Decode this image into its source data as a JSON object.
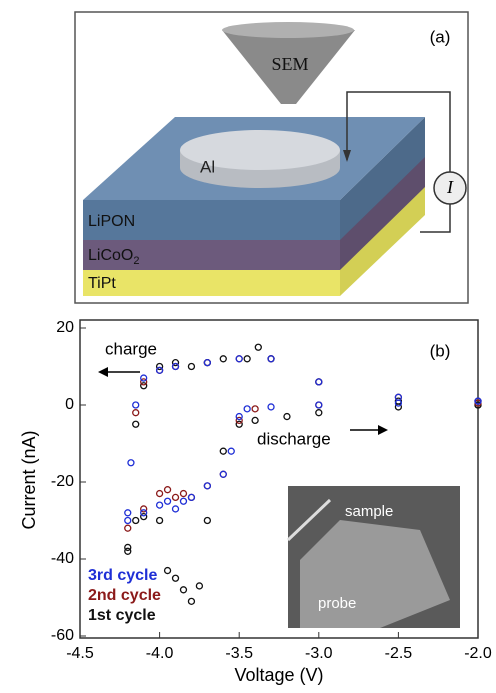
{
  "panel_a": {
    "label": "(a)",
    "sem": "SEM",
    "electrode": "Al",
    "meter": "I",
    "layers": [
      {
        "label": "LiPON",
        "color": "#56779b"
      },
      {
        "label": "LiCoO",
        "subscript": "2",
        "color": "#6c5a7c"
      },
      {
        "label": "TiPt",
        "color": "#e9e467"
      }
    ]
  },
  "chart_data": {
    "type": "scatter",
    "panel_label": "(b)",
    "x_label": "Voltage (V)",
    "y_label": "Current (nA)",
    "annotations": {
      "charge": "charge",
      "discharge": "discharge",
      "sample": "sample",
      "probe": "probe"
    },
    "xlim": [
      -4.5,
      -2.0
    ],
    "ylim": [
      -60,
      20
    ],
    "xticks": [
      {
        "value": -4.5,
        "label": "-4.5"
      },
      {
        "value": -4,
        "label": "-4.0"
      },
      {
        "value": -3.5,
        "label": "-3.5"
      },
      {
        "value": -3,
        "label": "-3.0"
      },
      {
        "value": -2.5,
        "label": "-2.5"
      },
      {
        "value": -2,
        "label": "-2.0"
      }
    ],
    "yticks": [
      -60,
      -40,
      -20,
      0,
      20
    ],
    "series": [
      {
        "name": "3rd cycle",
        "color": "#1f2fd6",
        "x": [
          -2.0,
          -2.5,
          -3.0,
          -3.3,
          -3.5,
          -3.7,
          -3.9,
          -4.0,
          -4.1,
          -4.15,
          -4.18,
          -4.2,
          -4.2,
          -4.1,
          -4.0,
          -3.95,
          -3.9,
          -3.85,
          -3.8,
          -3.7,
          -3.6,
          -3.55,
          -3.5,
          -3.45,
          -3.3,
          -3.0,
          -2.5,
          -2.0
        ],
        "values": [
          1,
          2,
          6,
          12,
          12,
          11,
          10,
          9,
          7,
          0,
          -15,
          -28,
          -30,
          -28,
          -26,
          -25,
          -27,
          -25,
          -24,
          -21,
          -18,
          -12,
          -3,
          -1,
          -0.5,
          0,
          0.5,
          1
        ]
      },
      {
        "name": "2nd cycle",
        "color": "#8b1a1a",
        "x": [
          -2.0,
          -2.5,
          -3.0,
          -3.3,
          -3.5,
          -3.7,
          -3.9,
          -4.0,
          -4.1,
          -4.15,
          -4.2,
          -4.1,
          -4.0,
          -3.95,
          -3.9,
          -3.85,
          -3.8,
          -3.7,
          -3.6,
          -3.5,
          -3.4,
          -3.0,
          -2.0
        ],
        "values": [
          1,
          2,
          6,
          12,
          12,
          11,
          10,
          9,
          6,
          -2,
          -32,
          -27,
          -23,
          -22,
          -24,
          -23,
          -24,
          -21,
          -18,
          -4,
          -1,
          0,
          0.5
        ]
      },
      {
        "name": "1st cycle",
        "color": "#111111",
        "x": [
          -2.0,
          -2.5,
          -3.0,
          -3.3,
          -3.38,
          -3.45,
          -3.6,
          -3.7,
          -3.8,
          -3.9,
          -4.0,
          -4.1,
          -4.15,
          -4.2,
          -4.2,
          -4.15,
          -4.1,
          -4.0,
          -3.95,
          -3.9,
          -3.85,
          -3.8,
          -3.75,
          -3.7,
          -3.6,
          -3.5,
          -3.4,
          -3.2,
          -3.0,
          -2.5,
          -2.0
        ],
        "values": [
          0,
          1,
          6,
          12,
          15,
          12,
          12,
          11,
          10,
          11,
          10,
          5,
          -5,
          -38,
          -37,
          -30,
          -29,
          -30,
          -43,
          -45,
          -48,
          -51,
          -47,
          -30,
          -12,
          -5,
          -4,
          -3,
          -2,
          -0.5,
          0
        ]
      }
    ]
  }
}
